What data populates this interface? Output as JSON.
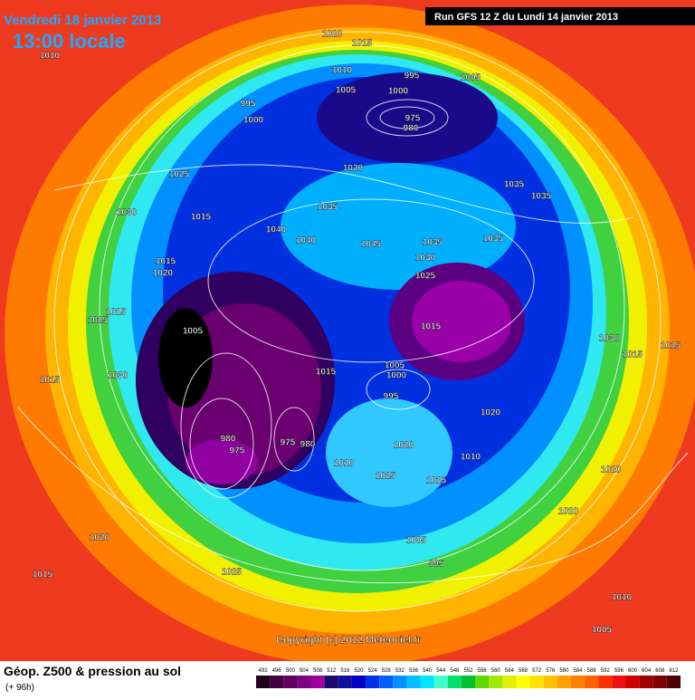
{
  "header": {
    "date": "Vendredi 18 janvier 2013",
    "time": "13:00 locale",
    "run": "Run GFS 12 Z du Lundi 14 janvier 2013"
  },
  "map": {
    "copyright": "Copyright (c) 2012 Meteociel.fr",
    "pressure_labels": [
      1020,
      1015,
      1010,
      1010,
      995,
      1005,
      1005,
      1000,
      995,
      1000,
      975,
      980,
      1020,
      1025,
      1035,
      1035,
      1030,
      1015,
      1035,
      1040,
      1040,
      1045,
      1035,
      1035,
      1030,
      1025,
      1015,
      1020,
      1005,
      1015,
      1015,
      1005,
      1000,
      995,
      1020,
      980,
      975,
      975,
      980,
      1010,
      1020,
      1010,
      1025,
      1015,
      1020,
      1020,
      1020,
      1015,
      1025,
      1005,
      995,
      1010,
      1005,
      1030,
      1015,
      1025,
      1015,
      1030,
      1015,
      1015
    ]
  },
  "footer": {
    "title": "Géop. Z500 & pression au sol",
    "lead": "(+ 96h)"
  },
  "scale": {
    "labels": [
      492,
      496,
      500,
      504,
      508,
      512,
      516,
      520,
      524,
      528,
      532,
      536,
      540,
      544,
      548,
      552,
      556,
      560,
      564,
      568,
      572,
      576,
      580,
      584,
      588,
      592,
      596,
      600,
      604,
      608,
      612
    ],
    "colors": [
      "#200020",
      "#400040",
      "#600060",
      "#800080",
      "#a000a0",
      "#1a0a6a",
      "#1010a0",
      "#0000c8",
      "#0030e8",
      "#0060ff",
      "#0090ff",
      "#00c0ff",
      "#00e8ff",
      "#40ffd0",
      "#00e070",
      "#00c030",
      "#60d800",
      "#a0e800",
      "#e0f000",
      "#ffff00",
      "#ffe000",
      "#ffc000",
      "#ffa000",
      "#ff8000",
      "#ff6000",
      "#ff3000",
      "#f01010",
      "#d00000",
      "#a00000",
      "#800000",
      "#500000"
    ]
  }
}
